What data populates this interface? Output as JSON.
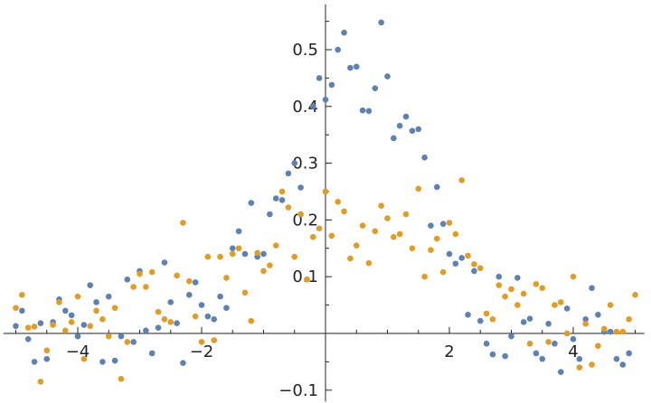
{
  "chart_data": {
    "type": "scatter",
    "title": "",
    "xlabel": "",
    "ylabel": "",
    "xlim": [
      -5.2,
      5.15
    ],
    "ylim": [
      -0.12,
      0.58
    ],
    "grid": false,
    "legend": "none",
    "x_ticks": [
      {
        "value": -4,
        "label": "−4"
      },
      {
        "value": -2,
        "label": "−2"
      },
      {
        "value": 2,
        "label": "2"
      },
      {
        "value": 4,
        "label": "4"
      }
    ],
    "y_ticks": [
      {
        "value": -0.1,
        "label": "−0.1"
      },
      {
        "value": 0.1,
        "label": "0.1"
      },
      {
        "value": 0.2,
        "label": "0.2"
      },
      {
        "value": 0.3,
        "label": "0.3"
      },
      {
        "value": 0.4,
        "label": "0.4"
      },
      {
        "value": 0.5,
        "label": "0.5"
      }
    ],
    "series": [
      {
        "color": "#5e81b5",
        "points": [
          [
            -5.0,
            0.013
          ],
          [
            -4.9,
            0.04
          ],
          [
            -4.8,
            -0.01
          ],
          [
            -4.7,
            -0.05
          ],
          [
            -4.6,
            0.018
          ],
          [
            -4.5,
            -0.045
          ],
          [
            -4.4,
            0.02
          ],
          [
            -4.3,
            0.06
          ],
          [
            -4.2,
            0.04
          ],
          [
            -4.1,
            0.032
          ],
          [
            -4.0,
            -0.005
          ],
          [
            -3.9,
            0.015
          ],
          [
            -3.8,
            0.085
          ],
          [
            -3.7,
            0.055
          ],
          [
            -3.6,
            -0.05
          ],
          [
            -3.5,
            0.065
          ],
          [
            -3.4,
            -0.048
          ],
          [
            -3.3,
            -0.005
          ],
          [
            -3.2,
            0.095
          ],
          [
            -3.1,
            -0.015
          ],
          [
            -3.0,
            0.11
          ],
          [
            -2.9,
            0.005
          ],
          [
            -2.8,
            -0.035
          ],
          [
            -2.7,
            0.01
          ],
          [
            -2.6,
            0.125
          ],
          [
            -2.5,
            0.055
          ],
          [
            -2.4,
            0.018
          ],
          [
            -2.3,
            -0.052
          ],
          [
            -2.2,
            0.068
          ],
          [
            -2.1,
            0.09
          ],
          [
            -2.0,
            0.05
          ],
          [
            -1.9,
            0.03
          ],
          [
            -1.8,
            0.025
          ],
          [
            -1.7,
            0.065
          ],
          [
            -1.6,
            0.045
          ],
          [
            -1.5,
            0.15
          ],
          [
            -1.4,
            0.18
          ],
          [
            -1.3,
            0.14
          ],
          [
            -1.2,
            0.23
          ],
          [
            -1.1,
            0.135
          ],
          [
            -1.0,
            0.14
          ],
          [
            -0.9,
            0.21
          ],
          [
            -0.8,
            0.238
          ],
          [
            -0.7,
            0.235
          ],
          [
            -0.6,
            0.282
          ],
          [
            -0.5,
            0.3
          ],
          [
            -0.4,
            0.257
          ],
          [
            -0.3,
            0.095
          ],
          [
            -0.2,
            0.4
          ],
          [
            -0.1,
            0.45
          ],
          [
            0.0,
            0.412
          ],
          [
            0.1,
            0.438
          ],
          [
            0.2,
            0.5
          ],
          [
            0.3,
            0.53
          ],
          [
            0.4,
            0.468
          ],
          [
            0.5,
            0.47
          ],
          [
            0.6,
            0.393
          ],
          [
            0.7,
            0.392
          ],
          [
            0.8,
            0.432
          ],
          [
            0.9,
            0.548
          ],
          [
            1.0,
            0.453
          ],
          [
            1.1,
            0.344
          ],
          [
            1.2,
            0.366
          ],
          [
            1.3,
            0.382
          ],
          [
            1.4,
            0.357
          ],
          [
            1.5,
            0.36
          ],
          [
            1.6,
            0.31
          ],
          [
            1.7,
            0.19
          ],
          [
            1.8,
            0.258
          ],
          [
            1.9,
            0.193
          ],
          [
            2.0,
            0.14
          ],
          [
            2.1,
            0.123
          ],
          [
            2.2,
            0.133
          ],
          [
            2.3,
            0.033
          ],
          [
            2.4,
            0.11
          ],
          [
            2.5,
            0.022
          ],
          [
            2.6,
            -0.018
          ],
          [
            2.7,
            -0.037
          ],
          [
            2.8,
            0.1
          ],
          [
            2.9,
            -0.04
          ],
          [
            3.0,
            -0.005
          ],
          [
            3.1,
            0.098
          ],
          [
            3.2,
            0.02
          ],
          [
            3.3,
            0.026
          ],
          [
            3.4,
            -0.035
          ],
          [
            3.5,
            -0.045
          ],
          [
            3.6,
            0.017
          ],
          [
            3.7,
            -0.018
          ],
          [
            3.8,
            -0.068
          ],
          [
            3.9,
            0.044
          ],
          [
            4.0,
            -0.01
          ],
          [
            4.1,
            -0.045
          ],
          [
            4.2,
            0.025
          ],
          [
            4.3,
            0.08
          ],
          [
            4.4,
            0.033
          ],
          [
            4.5,
            0.003
          ],
          [
            4.6,
            0.003
          ],
          [
            4.7,
            -0.045
          ],
          [
            4.8,
            -0.055
          ],
          [
            4.9,
            -0.035
          ]
        ]
      },
      {
        "color": "#e19c24",
        "points": [
          [
            -5.0,
            0.045
          ],
          [
            -4.9,
            0.068
          ],
          [
            -4.8,
            0.01
          ],
          [
            -4.7,
            0.012
          ],
          [
            -4.6,
            -0.085
          ],
          [
            -4.5,
            -0.03
          ],
          [
            -4.4,
            0.015
          ],
          [
            -4.3,
            0.055
          ],
          [
            -4.2,
            0.005
          ],
          [
            -4.1,
            0.02
          ],
          [
            -4.0,
            0.065
          ],
          [
            -3.9,
            -0.045
          ],
          [
            -3.8,
            0.013
          ],
          [
            -3.7,
            0.04
          ],
          [
            -3.6,
            0.025
          ],
          [
            -3.5,
            -0.005
          ],
          [
            -3.4,
            0.045
          ],
          [
            -3.3,
            -0.08
          ],
          [
            -3.2,
            -0.015
          ],
          [
            -3.1,
            0.082
          ],
          [
            -3.0,
            0.105
          ],
          [
            -2.9,
            0.082
          ],
          [
            -2.8,
            0.108
          ],
          [
            -2.7,
            0.038
          ],
          [
            -2.6,
            0.025
          ],
          [
            -2.5,
            0.02
          ],
          [
            -2.4,
            0.102
          ],
          [
            -2.3,
            0.195
          ],
          [
            -2.2,
            0.092
          ],
          [
            -2.1,
            0.03
          ],
          [
            -2.0,
            -0.015
          ],
          [
            -1.9,
            0.135
          ],
          [
            -1.8,
            -0.012
          ],
          [
            -1.7,
            0.135
          ],
          [
            -1.6,
            0.098
          ],
          [
            -1.5,
            0.14
          ],
          [
            -1.4,
            0.15
          ],
          [
            -1.3,
            0.072
          ],
          [
            -1.2,
            0.022
          ],
          [
            -1.1,
            0.142
          ],
          [
            -1.0,
            0.11
          ],
          [
            -0.9,
            0.12
          ],
          [
            -0.8,
            0.155
          ],
          [
            -0.7,
            0.25
          ],
          [
            -0.6,
            0.222
          ],
          [
            -0.5,
            0.135
          ],
          [
            -0.4,
            0.21
          ],
          [
            -0.3,
            0.095
          ],
          [
            -0.2,
            0.17
          ],
          [
            -0.1,
            0.185
          ],
          [
            0.0,
            0.25
          ],
          [
            0.1,
            0.172
          ],
          [
            0.2,
            0.232
          ],
          [
            0.3,
            0.215
          ],
          [
            0.4,
            0.132
          ],
          [
            0.5,
            0.155
          ],
          [
            0.6,
            0.19
          ],
          [
            0.7,
            0.124
          ],
          [
            0.8,
            0.18
          ],
          [
            0.9,
            0.225
          ],
          [
            1.0,
            0.203
          ],
          [
            1.1,
            0.17
          ],
          [
            1.2,
            0.175
          ],
          [
            1.3,
            0.21
          ],
          [
            1.4,
            0.15
          ],
          [
            1.5,
            0.255
          ],
          [
            1.6,
            0.1
          ],
          [
            1.7,
            0.147
          ],
          [
            1.8,
            0.167
          ],
          [
            1.9,
            0.108
          ],
          [
            2.0,
            0.195
          ],
          [
            2.1,
            0.175
          ],
          [
            2.2,
            0.27
          ],
          [
            2.3,
            0.137
          ],
          [
            2.4,
            0.122
          ],
          [
            2.5,
            0.115
          ],
          [
            2.6,
            0.035
          ],
          [
            2.7,
            0.025
          ],
          [
            2.8,
            0.085
          ],
          [
            2.9,
            0.065
          ],
          [
            3.0,
            0.078
          ],
          [
            3.1,
            0.05
          ],
          [
            3.2,
            0.07
          ],
          [
            3.3,
            -0.018
          ],
          [
            3.4,
            0.087
          ],
          [
            3.5,
            0.08
          ],
          [
            3.6,
            -0.015
          ],
          [
            3.7,
            0.05
          ],
          [
            3.8,
            0.055
          ],
          [
            3.9,
            0.0
          ],
          [
            4.0,
            0.1
          ],
          [
            4.1,
            -0.06
          ],
          [
            4.2,
            0.017
          ],
          [
            4.3,
            -0.055
          ],
          [
            4.4,
            -0.022
          ],
          [
            4.5,
            0.008
          ],
          [
            4.6,
            0.05
          ],
          [
            4.7,
            0.003
          ],
          [
            4.8,
            0.003
          ],
          [
            4.9,
            0.025
          ],
          [
            5.0,
            0.068
          ]
        ]
      }
    ]
  }
}
